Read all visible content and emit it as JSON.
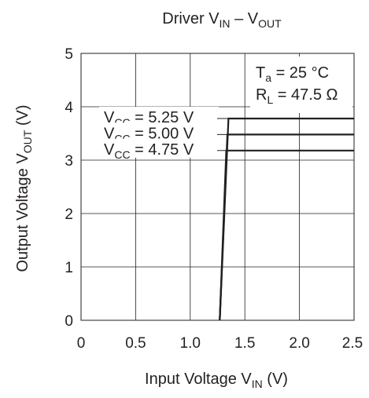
{
  "chart_data": {
    "type": "line",
    "title": {
      "main": "Driver",
      "v1": "V",
      "v1_sub": "IN",
      "sep": " – ",
      "v2": "V",
      "v2_sub": "OUT"
    },
    "xlabel": {
      "main": "Input Voltage V",
      "sub": "IN",
      "unit": "(V)"
    },
    "ylabel": {
      "main": "Output Voltage V",
      "sub": "OUT",
      "unit": "(V)"
    },
    "xlim": [
      0,
      2.5
    ],
    "ylim": [
      0,
      5
    ],
    "x_ticks": [
      "0",
      "0.5",
      "1.0",
      "1.5",
      "2.0",
      "2.5"
    ],
    "y_ticks": [
      "0",
      "1",
      "2",
      "3",
      "4",
      "5"
    ],
    "grid": true,
    "conditions": [
      {
        "pre": "T",
        "sub": "a",
        "post": " = 25 °C"
      },
      {
        "pre": "R",
        "sub": "L",
        "post": " = 47.5 Ω"
      }
    ],
    "series": [
      {
        "name": {
          "pre": "V",
          "sub": "CC",
          "post": " = 5.25 V"
        },
        "points": [
          [
            1.27,
            0
          ],
          [
            1.35,
            3.78
          ],
          [
            2.5,
            3.78
          ]
        ]
      },
      {
        "name": {
          "pre": "V",
          "sub": "CC",
          "post": " = 5.00 V"
        },
        "points": [
          [
            1.27,
            0
          ],
          [
            1.34,
            3.48
          ],
          [
            2.5,
            3.48
          ]
        ]
      },
      {
        "name": {
          "pre": "V",
          "sub": "CC",
          "post": " = 4.75 V"
        },
        "points": [
          [
            1.27,
            0
          ],
          [
            1.33,
            3.18
          ],
          [
            2.5,
            3.18
          ]
        ]
      }
    ],
    "series_color": "#231f20"
  }
}
